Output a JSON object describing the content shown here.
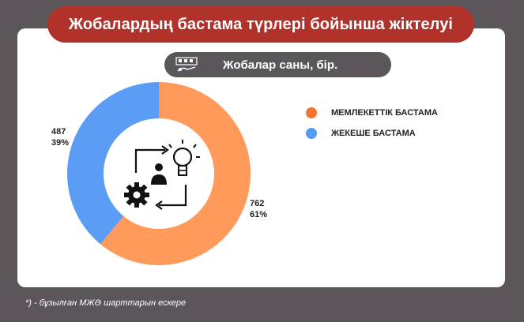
{
  "title": "Жобалардың бастама түрлері бойынша жіктелуі",
  "subtitle": "Жобалар саны, бір.",
  "footnote": "*) - бұзылған МЖӘ шарттарын ескере",
  "icons": {
    "subtitle": "project-chart-icon",
    "center": "idea-cycle-icon"
  },
  "colors": {
    "title_bg": "#b1322a",
    "page_bg": "#5b565a",
    "state": "#ff9a5a",
    "private": "#5b9cf5"
  },
  "chart_data": {
    "type": "pie",
    "donut": true,
    "categories": [
      "МЕМЛЕКЕТТІК БАСТАМА",
      "ЖЕКЕШЕ БАСТАМА"
    ],
    "values": [
      762,
      487
    ],
    "percents": [
      "61%",
      "39%"
    ],
    "value_labels": [
      "762",
      "487"
    ],
    "legend_position": "right"
  },
  "legend": [
    {
      "label": "МЕМЛЕКЕТТІК БАСТАМА",
      "color": "#f4752e"
    },
    {
      "label": "ЖЕКЕШЕ БАСТАМА",
      "color": "#4f9bf5"
    }
  ]
}
